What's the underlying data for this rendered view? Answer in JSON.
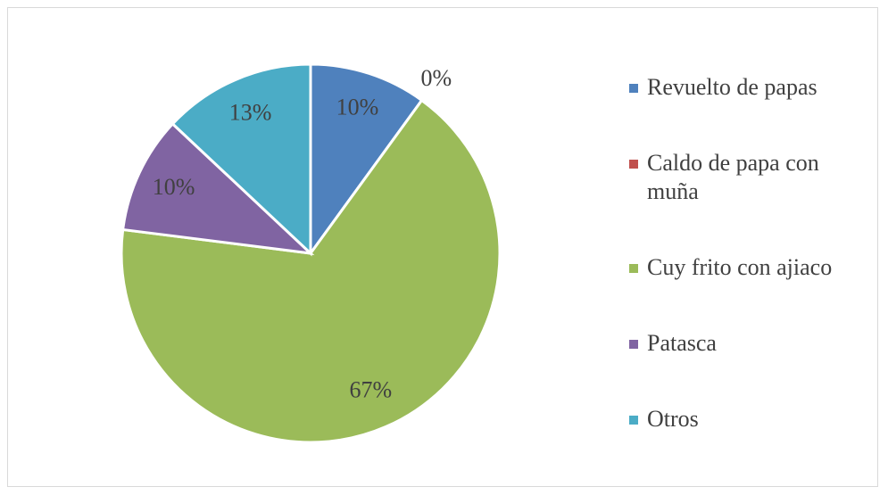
{
  "chart_data": {
    "type": "pie",
    "categories": [
      "Revuelto de papas",
      "Caldo de papa con muña",
      "Cuy frito con ajiaco",
      "Patasca",
      "Otros"
    ],
    "values": [
      10,
      0,
      67,
      10,
      13
    ],
    "value_labels": [
      "10%",
      "0%",
      "67%",
      "10%",
      "13%"
    ],
    "colors": [
      "#4f81bd",
      "#c0504d",
      "#9bbb59",
      "#8064a2",
      "#4bacc6"
    ],
    "legend": "right"
  }
}
